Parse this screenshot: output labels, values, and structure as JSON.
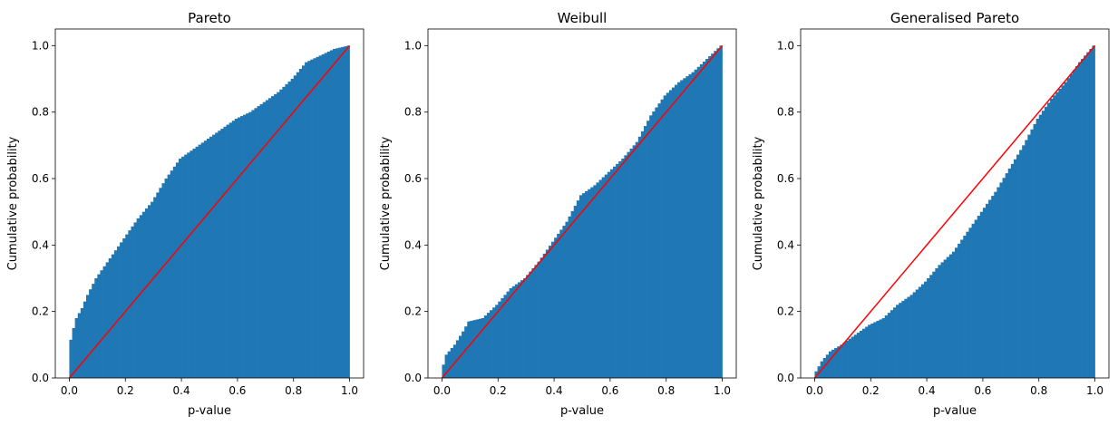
{
  "colors": {
    "bars": "#1f77b4",
    "reference_line": "#ff0000",
    "axes": "#000000"
  },
  "chart_data": [
    {
      "type": "bar",
      "title": "Pareto",
      "xlabel": "p-value",
      "ylabel": "Cumulative probability",
      "xlim": [
        -0.05,
        1.05
      ],
      "ylim": [
        0,
        1.05
      ],
      "xticks": [
        "0.0",
        "0.2",
        "0.4",
        "0.6",
        "0.8",
        "1.0"
      ],
      "yticks": [
        "0.0",
        "0.2",
        "0.4",
        "0.6",
        "0.8",
        "1.0"
      ],
      "bins": 100,
      "cumulative_curve": [
        [
          0,
          0.0
        ],
        [
          0.01,
          0.115
        ],
        [
          0.02,
          0.15
        ],
        [
          0.03,
          0.18
        ],
        [
          0.05,
          0.21
        ],
        [
          0.07,
          0.25
        ],
        [
          0.1,
          0.3
        ],
        [
          0.15,
          0.36
        ],
        [
          0.2,
          0.42
        ],
        [
          0.25,
          0.48
        ],
        [
          0.3,
          0.53
        ],
        [
          0.35,
          0.6
        ],
        [
          0.4,
          0.66
        ],
        [
          0.45,
          0.69
        ],
        [
          0.5,
          0.72
        ],
        [
          0.55,
          0.75
        ],
        [
          0.6,
          0.78
        ],
        [
          0.65,
          0.8
        ],
        [
          0.7,
          0.83
        ],
        [
          0.75,
          0.86
        ],
        [
          0.8,
          0.9
        ],
        [
          0.85,
          0.95
        ],
        [
          0.9,
          0.97
        ],
        [
          0.95,
          0.99
        ],
        [
          1.0,
          1.0
        ]
      ],
      "reference_line": [
        [
          0,
          0
        ],
        [
          1,
          1
        ]
      ]
    },
    {
      "type": "bar",
      "title": "Weibull",
      "xlabel": "p-value",
      "ylabel": "Cumulative probability",
      "xlim": [
        -0.05,
        1.05
      ],
      "ylim": [
        0,
        1.05
      ],
      "xticks": [
        "0.0",
        "0.2",
        "0.4",
        "0.6",
        "0.8",
        "1.0"
      ],
      "yticks": [
        "0.0",
        "0.2",
        "0.4",
        "0.6",
        "0.8",
        "1.0"
      ],
      "bins": 100,
      "cumulative_curve": [
        [
          0,
          0.0
        ],
        [
          0.01,
          0.04
        ],
        [
          0.02,
          0.07
        ],
        [
          0.05,
          0.1
        ],
        [
          0.08,
          0.14
        ],
        [
          0.1,
          0.17
        ],
        [
          0.15,
          0.18
        ],
        [
          0.2,
          0.22
        ],
        [
          0.25,
          0.27
        ],
        [
          0.3,
          0.3
        ],
        [
          0.35,
          0.35
        ],
        [
          0.4,
          0.41
        ],
        [
          0.45,
          0.47
        ],
        [
          0.5,
          0.55
        ],
        [
          0.55,
          0.58
        ],
        [
          0.6,
          0.62
        ],
        [
          0.65,
          0.66
        ],
        [
          0.7,
          0.71
        ],
        [
          0.75,
          0.79
        ],
        [
          0.8,
          0.85
        ],
        [
          0.85,
          0.89
        ],
        [
          0.9,
          0.92
        ],
        [
          0.95,
          0.96
        ],
        [
          1.0,
          1.0
        ]
      ],
      "reference_line": [
        [
          0,
          0
        ],
        [
          1,
          1
        ]
      ]
    },
    {
      "type": "bar",
      "title": "Generalised Pareto",
      "xlabel": "p-value",
      "ylabel": "Cumulative probability",
      "xlim": [
        -0.05,
        1.05
      ],
      "ylim": [
        0,
        1.05
      ],
      "xticks": [
        "0.0",
        "0.2",
        "0.4",
        "0.6",
        "0.8",
        "1.0"
      ],
      "yticks": [
        "0.0",
        "0.2",
        "0.4",
        "0.6",
        "0.8",
        "1.0"
      ],
      "bins": 100,
      "cumulative_curve": [
        [
          0,
          0.0
        ],
        [
          0.01,
          0.02
        ],
        [
          0.03,
          0.05
        ],
        [
          0.06,
          0.08
        ],
        [
          0.1,
          0.1
        ],
        [
          0.15,
          0.13
        ],
        [
          0.2,
          0.16
        ],
        [
          0.25,
          0.18
        ],
        [
          0.3,
          0.22
        ],
        [
          0.35,
          0.25
        ],
        [
          0.4,
          0.29
        ],
        [
          0.45,
          0.34
        ],
        [
          0.5,
          0.38
        ],
        [
          0.55,
          0.44
        ],
        [
          0.6,
          0.5
        ],
        [
          0.65,
          0.56
        ],
        [
          0.7,
          0.63
        ],
        [
          0.75,
          0.7
        ],
        [
          0.8,
          0.78
        ],
        [
          0.85,
          0.84
        ],
        [
          0.9,
          0.89
        ],
        [
          0.95,
          0.95
        ],
        [
          1.0,
          1.0
        ]
      ],
      "reference_line": [
        [
          0,
          0
        ],
        [
          1,
          1
        ]
      ]
    }
  ]
}
